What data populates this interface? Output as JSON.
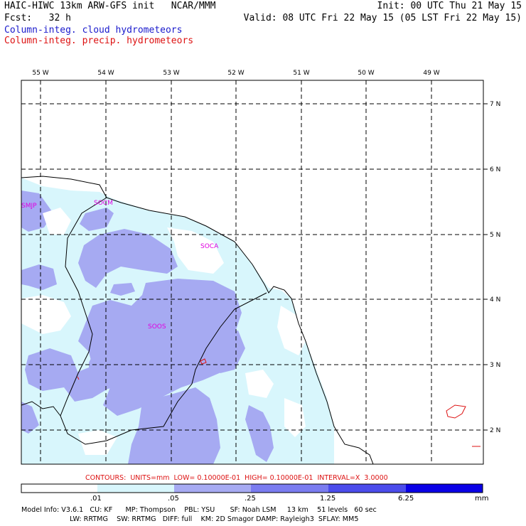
{
  "header": {
    "model_line": "HAIC-HIWC 13km ARW-GFS init   NCAR/MMM",
    "init": "Init: 00 UTC Thu 21 May 15",
    "fcst_label": "Fcst:",
    "fcst_value": "32 h",
    "valid": "Valid: 08 UTC Fri 22 May 15 (05 LST Fri 22 May 15)",
    "field_cloud": "Column-integ. cloud hydrometeors",
    "field_precip": "Column-integ. precip. hydrometeors"
  },
  "map": {
    "lon_labels": [
      "55 W",
      "54 W",
      "53 W",
      "52 W",
      "51 W",
      "50 W",
      "49 W"
    ],
    "lat_labels": [
      "7 N",
      "6 N",
      "5 N",
      "4 N",
      "3 N",
      "2 N"
    ],
    "stations": [
      "SMJP",
      "SOCM",
      "SOCA",
      "SOOS"
    ]
  },
  "contours_text": "CONTOURS:  UNITS=mm  LOW= 0.10000E-01  HIGH= 0.10000E-01  INTERVAL=X  3.0000",
  "colorbar": {
    "labels": [
      ".01",
      ".05",
      ".25",
      "1.25",
      "6.25"
    ],
    "units": "mm",
    "colors": [
      "#ffffff",
      "#d8f6fc",
      "#a6aaf2",
      "#7a7cf0",
      "#4b4ceb",
      "#0a00e6"
    ]
  },
  "model_info": {
    "line1": "Model Info: V3.6.1   CU: KF      MP: Thompson    PBL: YSU       SF: Noah LSM     13 km    51 levels   60 sec",
    "line2": "LW: RRTMG    SW: RRTMG   DIFF: full    KM: 2D Smagor DAMP: Rayleigh3  SFLAY: MM5"
  }
}
